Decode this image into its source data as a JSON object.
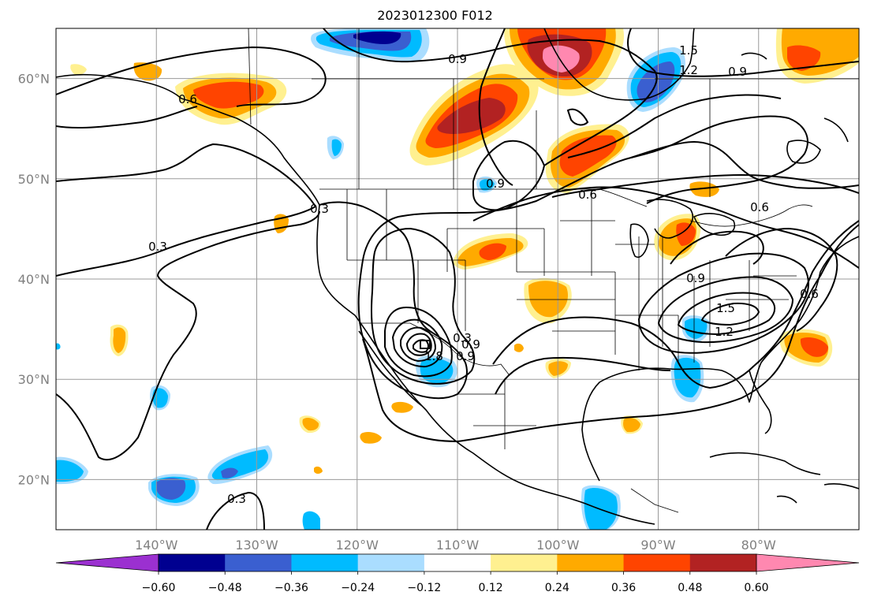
{
  "title": "2023012300 F012",
  "map": {
    "lon_range": [
      -150,
      -70
    ],
    "lat_range": [
      15,
      65
    ],
    "gridlines": true,
    "lon_ticks": [
      {
        "value": -140,
        "label": "140°W"
      },
      {
        "value": -130,
        "label": "130°W"
      },
      {
        "value": -120,
        "label": "120°W"
      },
      {
        "value": -110,
        "label": "110°W"
      },
      {
        "value": -100,
        "label": "100°W"
      },
      {
        "value": -90,
        "label": "90°W"
      },
      {
        "value": -80,
        "label": "80°W"
      }
    ],
    "lat_ticks": [
      {
        "value": 20,
        "label": "20°N"
      },
      {
        "value": 30,
        "label": "30°N"
      },
      {
        "value": 40,
        "label": "40°N"
      },
      {
        "value": 50,
        "label": "50°N"
      },
      {
        "value": 60,
        "label": "60°N"
      }
    ]
  },
  "colorbar": {
    "levels": [
      -0.6,
      -0.48,
      -0.36,
      -0.24,
      -0.12,
      0.12,
      0.24,
      0.36,
      0.48,
      0.6
    ],
    "labels": [
      "−0.60",
      "−0.48",
      "−0.36",
      "−0.24",
      "−0.12",
      "0.12",
      "0.24",
      "0.36",
      "0.48",
      "0.60"
    ],
    "under_color": "#9b30d0",
    "over_color": "#ff88b0",
    "colors": [
      "#000090",
      "#3a5fd0",
      "#00bbff",
      "#aaddff",
      "#ffffff",
      "#fff090",
      "#ffaa00",
      "#ff4400",
      "#b22222"
    ]
  },
  "contour_labels": [
    "0.3",
    "0.3",
    "0.3",
    "0.6",
    "0.6",
    "0.6",
    "0.6",
    "0.9",
    "0.9",
    "0.9",
    "0.9",
    "0.9",
    "1.2",
    "1.2",
    "1.5",
    "1.5",
    "1.8",
    "0.9",
    "0.3"
  ]
}
